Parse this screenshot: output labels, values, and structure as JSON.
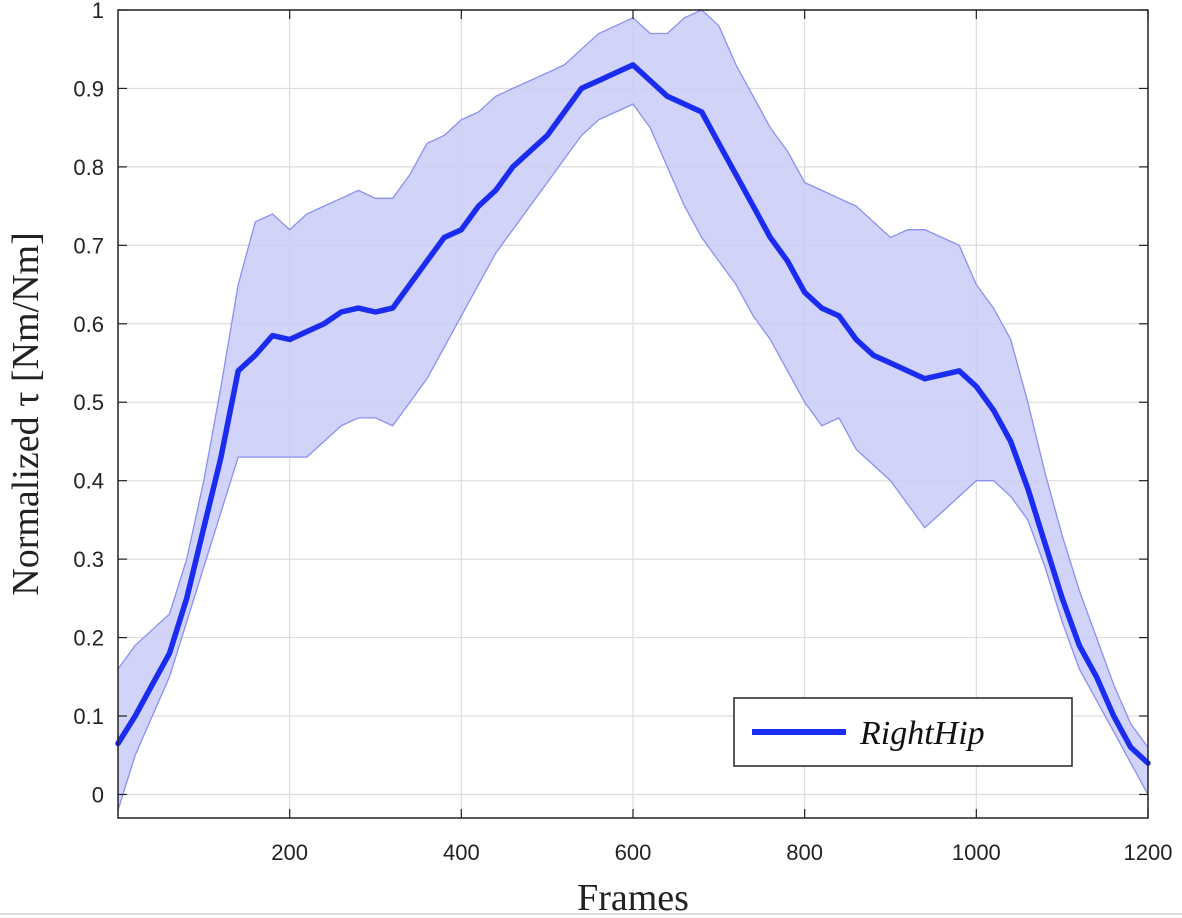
{
  "chart_data": {
    "type": "line",
    "title": "",
    "xlabel": "Frames",
    "ylabel": "Normalized τ [Nm/Nm]",
    "xlim": [
      0,
      1200
    ],
    "ylim": [
      -0.03,
      1.0
    ],
    "xticks": [
      200,
      400,
      600,
      800,
      1000,
      1200
    ],
    "xtick_labels": [
      "200",
      "400",
      "600",
      "800",
      "1000",
      "1200"
    ],
    "yticks": [
      0,
      0.1,
      0.2,
      0.3,
      0.4,
      0.5,
      0.6,
      0.7,
      0.8,
      0.9,
      1
    ],
    "ytick_labels": [
      "0",
      "0.1",
      "0.2",
      "0.3",
      "0.4",
      "0.5",
      "0.6",
      "0.7",
      "0.8",
      "0.9",
      "1"
    ],
    "grid": true,
    "legend_position": "bottom-right",
    "colors": {
      "line": "#1a2cf0",
      "band": "#c9ccf7",
      "band_edge": "#8a90f0",
      "grid": "#dcdcdc",
      "axis": "#222222"
    },
    "series": [
      {
        "name": "RightHip",
        "x": [
          0,
          20,
          40,
          60,
          80,
          100,
          120,
          140,
          160,
          180,
          200,
          220,
          240,
          260,
          280,
          300,
          320,
          340,
          360,
          380,
          400,
          420,
          440,
          460,
          480,
          500,
          520,
          540,
          560,
          580,
          600,
          620,
          640,
          660,
          680,
          700,
          720,
          740,
          760,
          780,
          800,
          820,
          840,
          860,
          880,
          900,
          920,
          940,
          960,
          980,
          1000,
          1020,
          1040,
          1060,
          1080,
          1100,
          1120,
          1140,
          1160,
          1180,
          1200
        ],
        "y": [
          0.065,
          0.1,
          0.14,
          0.18,
          0.25,
          0.34,
          0.43,
          0.54,
          0.56,
          0.585,
          0.58,
          0.59,
          0.6,
          0.615,
          0.62,
          0.615,
          0.62,
          0.65,
          0.68,
          0.71,
          0.72,
          0.75,
          0.77,
          0.8,
          0.82,
          0.84,
          0.87,
          0.9,
          0.91,
          0.92,
          0.93,
          0.91,
          0.89,
          0.88,
          0.87,
          0.83,
          0.79,
          0.75,
          0.71,
          0.68,
          0.64,
          0.62,
          0.61,
          0.58,
          0.56,
          0.55,
          0.54,
          0.53,
          0.535,
          0.54,
          0.52,
          0.49,
          0.45,
          0.39,
          0.32,
          0.25,
          0.19,
          0.15,
          0.1,
          0.06,
          0.04
        ],
        "lower": [
          -0.02,
          0.05,
          0.1,
          0.15,
          0.22,
          0.29,
          0.36,
          0.43,
          0.43,
          0.43,
          0.43,
          0.43,
          0.45,
          0.47,
          0.48,
          0.48,
          0.47,
          0.5,
          0.53,
          0.57,
          0.61,
          0.65,
          0.69,
          0.72,
          0.75,
          0.78,
          0.81,
          0.84,
          0.86,
          0.87,
          0.88,
          0.85,
          0.8,
          0.75,
          0.71,
          0.68,
          0.65,
          0.61,
          0.58,
          0.54,
          0.5,
          0.47,
          0.48,
          0.44,
          0.42,
          0.4,
          0.37,
          0.34,
          0.36,
          0.38,
          0.4,
          0.4,
          0.38,
          0.35,
          0.29,
          0.22,
          0.16,
          0.12,
          0.08,
          0.04,
          0.0
        ],
        "upper": [
          0.16,
          0.19,
          0.21,
          0.23,
          0.3,
          0.4,
          0.52,
          0.65,
          0.73,
          0.74,
          0.72,
          0.74,
          0.75,
          0.76,
          0.77,
          0.76,
          0.76,
          0.79,
          0.83,
          0.84,
          0.86,
          0.87,
          0.89,
          0.9,
          0.91,
          0.92,
          0.93,
          0.95,
          0.97,
          0.98,
          0.99,
          0.97,
          0.97,
          0.99,
          1.0,
          0.98,
          0.93,
          0.89,
          0.85,
          0.82,
          0.78,
          0.77,
          0.76,
          0.75,
          0.73,
          0.71,
          0.72,
          0.72,
          0.71,
          0.7,
          0.65,
          0.62,
          0.58,
          0.5,
          0.41,
          0.33,
          0.26,
          0.2,
          0.14,
          0.09,
          0.06
        ]
      }
    ]
  }
}
